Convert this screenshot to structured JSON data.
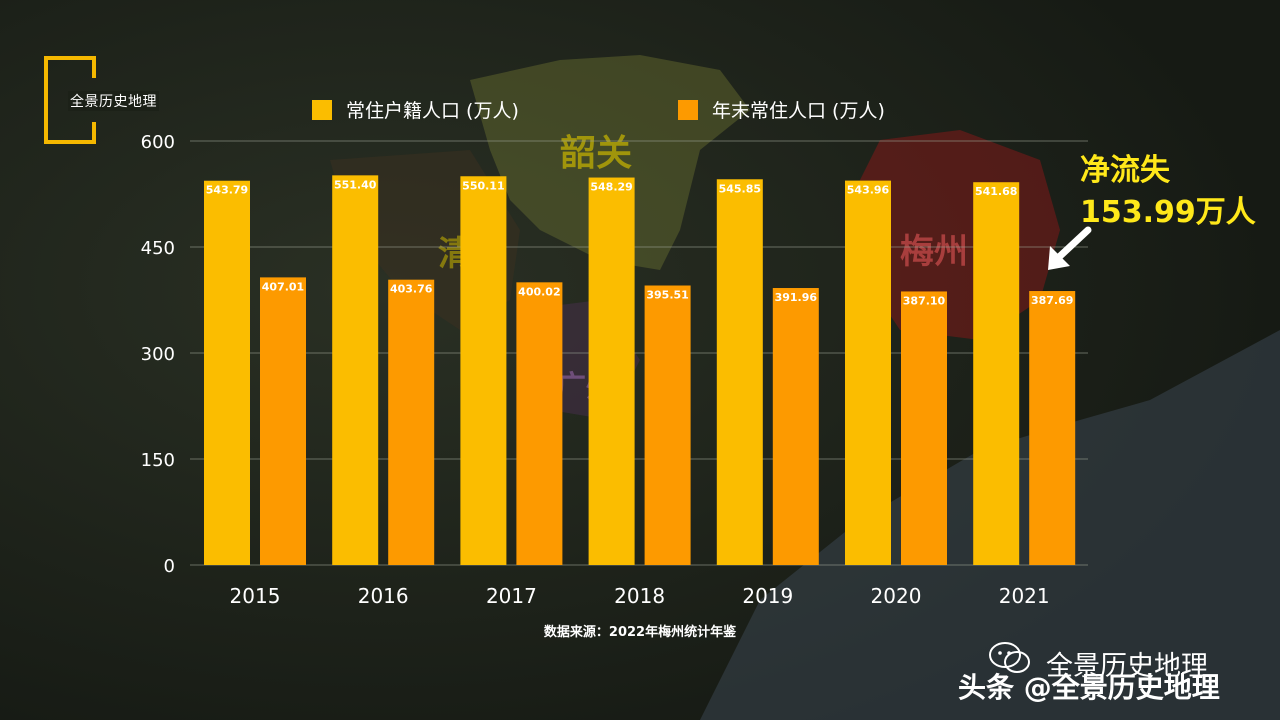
{
  "brand": {
    "logo_text": "全景历史地理",
    "accent_color": "#f5b800"
  },
  "map_labels": {
    "shaoguan": "韶关",
    "qingyuan": "清远",
    "meizhou": "梅州",
    "guangzhou": "广州"
  },
  "callout": {
    "line1": "净流失",
    "line2": "153.99万人",
    "color": "#ffe81a",
    "arrow_icon": "arrow-down-left-icon"
  },
  "source_text": "数据来源：2022年梅州统计年鉴",
  "watermark": {
    "primary": "全景历史地理",
    "secondary": "头条 @全景历史地理",
    "icon": "wechat-icon"
  },
  "chart_data": {
    "type": "bar",
    "categories": [
      "2015",
      "2016",
      "2017",
      "2018",
      "2019",
      "2020",
      "2021"
    ],
    "series": [
      {
        "name": "常住户籍人口 (万人)",
        "color": "#fbbd00",
        "values": [
          543.79,
          551.4,
          550.11,
          548.29,
          545.85,
          543.96,
          541.68
        ],
        "labels": [
          "543.79",
          "551.40",
          "550.11",
          "548.29",
          "545.85",
          "543.96",
          "541.68"
        ]
      },
      {
        "name": "年末常住人口 (万人)",
        "color": "#fd9a00",
        "values": [
          407.01,
          403.76,
          400.02,
          395.51,
          391.96,
          387.1,
          387.69
        ],
        "labels": [
          "407.01",
          "403.76",
          "400.02",
          "395.51",
          "391.96",
          "387.10",
          "387.69"
        ]
      }
    ],
    "yticks": [
      "0",
      "150",
      "300",
      "450",
      "600"
    ],
    "ylim": [
      0,
      600
    ],
    "grid": true,
    "legend_position": "top"
  }
}
